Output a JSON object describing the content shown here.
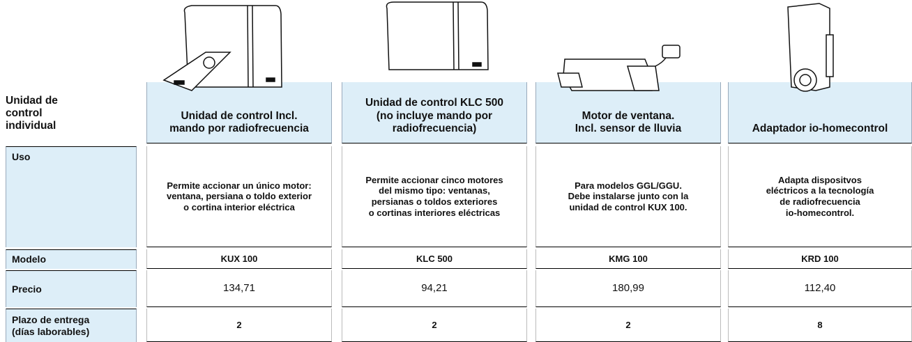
{
  "header": {
    "title": "Unidad de control individual"
  },
  "row_labels": [
    "Uso",
    "Modelo",
    "Precio",
    "Plazo de entrega\n(días laborables)"
  ],
  "products": [
    {
      "title": "Unidad de control Incl.\nmando por radiofrecuencia",
      "uso": "Permite accionar un único motor:\nventana, persiana o toldo exterior\no cortina interior eléctrica",
      "modelo": "KUX 100",
      "precio": "134,71",
      "plazo": 2
    },
    {
      "title": "Unidad de control KLC 500\n(no incluye mando por\nradiofrecuencia)",
      "uso": "Permite accionar cinco motores\ndel mismo tipo: ventanas,\npersianas o toldos exteriores\no cortinas interiores eléctricas",
      "modelo": "KLC 500",
      "precio": "94,21",
      "plazo": 2
    },
    {
      "title": "Motor de ventana.\nIncl. sensor de lluvia",
      "uso": "Para modelos GGL/GGU.\nDebe instalarse junto con la\nunidad de control KUX 100.",
      "modelo": "KMG 100",
      "precio": "180,99",
      "plazo": 2
    },
    {
      "title": "Adaptador io-homecontrol",
      "uso": "Adapta dispositvos\neléctricos a la tecnología\nde radiofrecuencia\nio-homecontrol.",
      "modelo": "KRD 100",
      "precio": "112,40",
      "plazo": 8
    }
  ]
}
